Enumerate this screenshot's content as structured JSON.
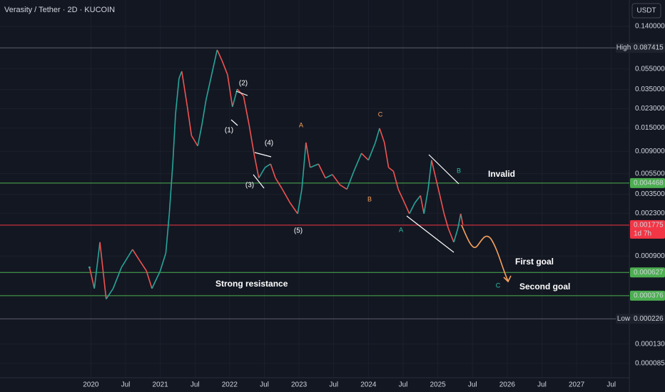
{
  "chart_data": {
    "type": "line",
    "title": "Verasity / Tether · 2D · KUCOIN",
    "currency": "USDT",
    "log_scale": true,
    "grid": true,
    "up_color": "#26a69a",
    "down_color": "#ef5350",
    "xlim": [
      2018.69,
      2027.76
    ],
    "ylim": [
      6.2e-05,
      0.25
    ],
    "xticks": [
      2020,
      {
        "value": 2020.5,
        "label": "Jul"
      },
      2021,
      {
        "value": 2021.5,
        "label": "Jul"
      },
      2022,
      {
        "value": 2022.5,
        "label": "Jul"
      },
      2023,
      {
        "value": 2023.5,
        "label": "Jul"
      },
      2024,
      {
        "value": 2024.5,
        "label": "Jul"
      },
      2025,
      {
        "value": 2025.5,
        "label": "Jul"
      },
      2026,
      {
        "value": 2026.5,
        "label": "Jul"
      },
      2027,
      {
        "value": 2027.5,
        "label": "Jul"
      }
    ],
    "yticks": [
      {
        "value": 0.14,
        "label": "0.140000"
      },
      {
        "value": 0.055,
        "label": "0.055000"
      },
      {
        "value": 0.035,
        "label": "0.035000"
      },
      {
        "value": 0.023,
        "label": "0.023000"
      },
      {
        "value": 0.015,
        "label": "0.015000"
      },
      {
        "value": 0.009,
        "label": "0.009000"
      },
      {
        "value": 0.0055,
        "label": "0.005500"
      },
      {
        "value": 0.0035,
        "label": "0.003500"
      },
      {
        "value": 0.0023,
        "label": "0.002300"
      },
      {
        "value": 0.0009,
        "label": "0.000900"
      },
      {
        "value": 0.00013,
        "label": "0.000130"
      },
      {
        "value": 8.5e-05,
        "label": "0.000085"
      }
    ],
    "x": [
      2019.98,
      2020.05,
      2020.13,
      2020.22,
      2020.32,
      2020.44,
      2020.6,
      2020.7,
      2020.8,
      2020.88,
      2021.0,
      2021.08,
      2021.13,
      2021.18,
      2021.22,
      2021.27,
      2021.31,
      2021.39,
      2021.45,
      2021.54,
      2021.6,
      2021.66,
      2021.74,
      2021.82,
      2021.89,
      2021.97,
      2022.04,
      2022.11,
      2022.2,
      2022.28,
      2022.35,
      2022.42,
      2022.51,
      2022.59,
      2022.66,
      2022.76,
      2022.87,
      2022.98,
      2023.04,
      2023.1,
      2023.16,
      2023.28,
      2023.38,
      2023.48,
      2023.59,
      2023.69,
      2023.79,
      2023.9,
      2024.0,
      2024.1,
      2024.16,
      2024.23,
      2024.29,
      2024.36,
      2024.43,
      2024.52,
      2024.59,
      2024.67,
      2024.75,
      2024.8,
      2024.86,
      2024.91,
      2024.97,
      2025.03,
      2025.09,
      2025.15,
      2025.23,
      2025.29,
      2025.33,
      2025.36
    ],
    "values": [
      0.0007,
      0.00044,
      0.00122,
      0.00035,
      0.00044,
      0.0007,
      0.00104,
      0.00082,
      0.00065,
      0.00044,
      0.00065,
      0.00096,
      0.00228,
      0.0068,
      0.0204,
      0.0447,
      0.0522,
      0.0239,
      0.0127,
      0.0101,
      0.0161,
      0.0279,
      0.0483,
      0.0836,
      0.066,
      0.0483,
      0.0239,
      0.0353,
      0.0302,
      0.0161,
      0.0086,
      0.005,
      0.0063,
      0.0068,
      0.005,
      0.0039,
      0.0029,
      0.00228,
      0.0039,
      0.0109,
      0.0063,
      0.0068,
      0.005,
      0.0054,
      0.0043,
      0.0039,
      0.0058,
      0.0086,
      0.0074,
      0.0109,
      0.0149,
      0.0109,
      0.0063,
      0.0058,
      0.0039,
      0.0029,
      0.00228,
      0.0029,
      0.0034,
      0.00228,
      0.0039,
      0.0074,
      0.005,
      0.0034,
      0.00228,
      0.00166,
      0.00122,
      0.00166,
      0.00228,
      0.0018
    ],
    "price_lines": [
      {
        "value": 0.087415,
        "label": "0.087415",
        "tag": "High",
        "color": "#5d606b",
        "bg": "#1e222d"
      },
      {
        "value": 0.004468,
        "label": "0.004468",
        "color": "#4caf50",
        "bg": "#4caf50"
      },
      {
        "value": 0.001775,
        "label": "0.001775",
        "sub": "1d 7h",
        "color": "#f23645",
        "bg": "#f23645"
      },
      {
        "value": 0.000627,
        "label": "0.000627",
        "color": "#4caf50",
        "bg": "#4caf50"
      },
      {
        "value": 0.000376,
        "label": "0.000376",
        "color": "#4caf50",
        "bg": "#4caf50"
      },
      {
        "value": 0.000226,
        "label": "0.000226",
        "tag": "Low",
        "color": "#5d606b",
        "bg": "#1e222d"
      }
    ],
    "annotations": [
      "(1)",
      "(2)",
      "(3)",
      "(4)",
      "(5)",
      "A",
      "B",
      "C",
      "A",
      "B",
      "C",
      "Invalid",
      "First goal",
      "Second goal",
      "Strong resistance"
    ]
  }
}
